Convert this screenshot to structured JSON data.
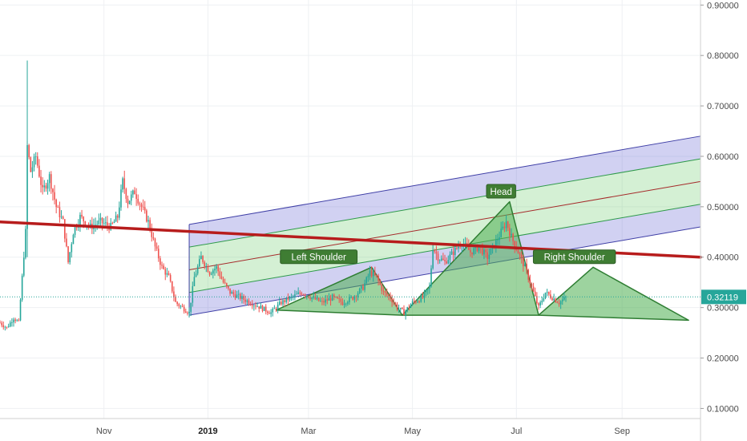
{
  "chart_data": {
    "type": "candlestick",
    "y_axis": {
      "min": 0.08,
      "max": 0.91,
      "ticks": [
        "0.90000",
        "0.80000",
        "0.70000",
        "0.60000",
        "0.50000",
        "0.40000",
        "0.30000",
        "0.20000",
        "0.10000"
      ],
      "tick_values": [
        0.9,
        0.8,
        0.7,
        0.6,
        0.5,
        0.4,
        0.3,
        0.2,
        0.1
      ]
    },
    "x_axis": {
      "start": "2018-09-01",
      "end": "2019-10-17",
      "ticks": [
        {
          "label": "Nov",
          "date": "2018-11-01",
          "bold": false
        },
        {
          "label": "2019",
          "date": "2019-01-01",
          "bold": true
        },
        {
          "label": "Mar",
          "date": "2019-03-01",
          "bold": false
        },
        {
          "label": "May",
          "date": "2019-05-01",
          "bold": false
        },
        {
          "label": "Jul",
          "date": "2019-07-01",
          "bold": false
        },
        {
          "label": "Sep",
          "date": "2019-09-01",
          "bold": false
        }
      ]
    },
    "current_price": {
      "label": "0.32119",
      "value": 0.32119,
      "color": "#26a69a"
    },
    "colors": {
      "up": "#26a69a",
      "down": "#ef5350",
      "trendline": "#b71c1c",
      "channel_outer": "#3f3fa6",
      "channel_inner": "#2e9a4a",
      "channel_mid": "#a52a2a",
      "pattern": "#5cb85c",
      "pattern_stroke": "#2e7d32"
    },
    "price_path": [
      {
        "d": "2018-09-01",
        "p": 0.27
      },
      {
        "d": "2018-09-05",
        "p": 0.26
      },
      {
        "d": "2018-09-09",
        "p": 0.28
      },
      {
        "d": "2018-09-12",
        "p": 0.27
      },
      {
        "d": "2018-09-14",
        "p": 0.36
      },
      {
        "d": "2018-09-16",
        "p": 0.45
      },
      {
        "d": "2018-09-17",
        "p": 0.62
      },
      {
        "d": "2018-09-19",
        "p": 0.57
      },
      {
        "d": "2018-09-22",
        "p": 0.6
      },
      {
        "d": "2018-09-26",
        "p": 0.53
      },
      {
        "d": "2018-09-30",
        "p": 0.56
      },
      {
        "d": "2018-10-04",
        "p": 0.5
      },
      {
        "d": "2018-10-08",
        "p": 0.47
      },
      {
        "d": "2018-10-11",
        "p": 0.39
      },
      {
        "d": "2018-10-14",
        "p": 0.45
      },
      {
        "d": "2018-10-18",
        "p": 0.48
      },
      {
        "d": "2018-10-24",
        "p": 0.46
      },
      {
        "d": "2018-10-30",
        "p": 0.47
      },
      {
        "d": "2018-11-05",
        "p": 0.46
      },
      {
        "d": "2018-11-09",
        "p": 0.48
      },
      {
        "d": "2018-11-12",
        "p": 0.55
      },
      {
        "d": "2018-11-15",
        "p": 0.51
      },
      {
        "d": "2018-11-19",
        "p": 0.53
      },
      {
        "d": "2018-11-23",
        "p": 0.5
      },
      {
        "d": "2018-11-27",
        "p": 0.47
      },
      {
        "d": "2018-12-01",
        "p": 0.42
      },
      {
        "d": "2018-12-05",
        "p": 0.38
      },
      {
        "d": "2018-12-09",
        "p": 0.36
      },
      {
        "d": "2018-12-13",
        "p": 0.31
      },
      {
        "d": "2018-12-17",
        "p": 0.3
      },
      {
        "d": "2018-12-21",
        "p": 0.29
      },
      {
        "d": "2018-12-24",
        "p": 0.36
      },
      {
        "d": "2018-12-28",
        "p": 0.4
      },
      {
        "d": "2019-01-02",
        "p": 0.37
      },
      {
        "d": "2019-01-06",
        "p": 0.38
      },
      {
        "d": "2019-01-10",
        "p": 0.35
      },
      {
        "d": "2019-01-14",
        "p": 0.33
      },
      {
        "d": "2019-01-20",
        "p": 0.32
      },
      {
        "d": "2019-01-26",
        "p": 0.31
      },
      {
        "d": "2019-02-01",
        "p": 0.3
      },
      {
        "d": "2019-02-07",
        "p": 0.29
      },
      {
        "d": "2019-02-13",
        "p": 0.31
      },
      {
        "d": "2019-02-19",
        "p": 0.32
      },
      {
        "d": "2019-02-25",
        "p": 0.33
      },
      {
        "d": "2019-03-03",
        "p": 0.32
      },
      {
        "d": "2019-03-09",
        "p": 0.31
      },
      {
        "d": "2019-03-15",
        "p": 0.32
      },
      {
        "d": "2019-03-21",
        "p": 0.31
      },
      {
        "d": "2019-03-27",
        "p": 0.32
      },
      {
        "d": "2019-04-02",
        "p": 0.34
      },
      {
        "d": "2019-04-06",
        "p": 0.37
      },
      {
        "d": "2019-04-10",
        "p": 0.36
      },
      {
        "d": "2019-04-14",
        "p": 0.33
      },
      {
        "d": "2019-04-18",
        "p": 0.32
      },
      {
        "d": "2019-04-22",
        "p": 0.3
      },
      {
        "d": "2019-04-26",
        "p": 0.29
      },
      {
        "d": "2019-05-01",
        "p": 0.31
      },
      {
        "d": "2019-05-07",
        "p": 0.32
      },
      {
        "d": "2019-05-11",
        "p": 0.34
      },
      {
        "d": "2019-05-13",
        "p": 0.42
      },
      {
        "d": "2019-05-16",
        "p": 0.4
      },
      {
        "d": "2019-05-20",
        "p": 0.39
      },
      {
        "d": "2019-05-25",
        "p": 0.41
      },
      {
        "d": "2019-05-30",
        "p": 0.43
      },
      {
        "d": "2019-06-04",
        "p": 0.41
      },
      {
        "d": "2019-06-09",
        "p": 0.42
      },
      {
        "d": "2019-06-14",
        "p": 0.4
      },
      {
        "d": "2019-06-19",
        "p": 0.43
      },
      {
        "d": "2019-06-22",
        "p": 0.45
      },
      {
        "d": "2019-06-25",
        "p": 0.47
      },
      {
        "d": "2019-06-28",
        "p": 0.44
      },
      {
        "d": "2019-07-02",
        "p": 0.41
      },
      {
        "d": "2019-07-06",
        "p": 0.38
      },
      {
        "d": "2019-07-10",
        "p": 0.34
      },
      {
        "d": "2019-07-14",
        "p": 0.3
      },
      {
        "d": "2019-07-18",
        "p": 0.33
      },
      {
        "d": "2019-07-22",
        "p": 0.32
      },
      {
        "d": "2019-07-26",
        "p": 0.31
      },
      {
        "d": "2019-07-30",
        "p": 0.32
      }
    ],
    "trendline": {
      "from": {
        "d": "2018-09-01",
        "p": 0.47
      },
      "to": {
        "d": "2019-10-17",
        "p": 0.4
      }
    },
    "regression_channel": {
      "from_date": "2018-12-21",
      "to_date": "2019-10-17",
      "lines": [
        {
          "role": "outer",
          "from": 0.465,
          "to": 0.64
        },
        {
          "role": "inner",
          "from": 0.42,
          "to": 0.595
        },
        {
          "role": "mid",
          "from": 0.375,
          "to": 0.55
        },
        {
          "role": "inner",
          "from": 0.33,
          "to": 0.505
        },
        {
          "role": "outer",
          "from": 0.285,
          "to": 0.46
        }
      ]
    },
    "pattern": {
      "triangles": [
        {
          "name": "left-shoulder",
          "points": [
            {
              "d": "2019-02-10",
              "p": 0.295
            },
            {
              "d": "2019-04-07",
              "p": 0.38
            },
            {
              "d": "2019-04-25",
              "p": 0.285
            }
          ]
        },
        {
          "name": "head",
          "points": [
            {
              "d": "2019-04-25",
              "p": 0.285
            },
            {
              "d": "2019-06-27",
              "p": 0.51
            },
            {
              "d": "2019-07-14",
              "p": 0.285
            }
          ]
        },
        {
          "name": "right-shoulder",
          "points": [
            {
              "d": "2019-07-14",
              "p": 0.285
            },
            {
              "d": "2019-08-15",
              "p": 0.38
            },
            {
              "d": "2019-10-10",
              "p": 0.275
            }
          ]
        }
      ],
      "labels": [
        {
          "text": "Left Shoulder",
          "d": "2019-03-07",
          "p": 0.4
        },
        {
          "text": "Head",
          "d": "2019-06-22",
          "p": 0.53
        },
        {
          "text": "Right Shoulder",
          "d": "2019-08-04",
          "p": 0.4
        }
      ]
    }
  }
}
